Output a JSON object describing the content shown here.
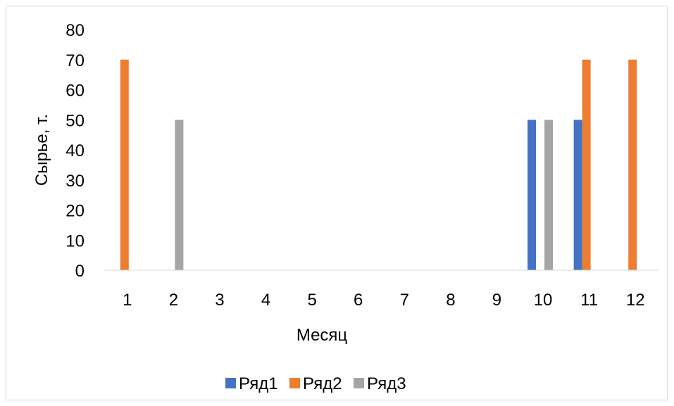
{
  "chart_data": {
    "type": "bar",
    "categories": [
      "1",
      "2",
      "3",
      "4",
      "5",
      "6",
      "7",
      "8",
      "9",
      "10",
      "11",
      "12"
    ],
    "series": [
      {
        "name": "Ряд1",
        "color": "#4472C4",
        "values": [
          0,
          0,
          0,
          0,
          0,
          0,
          0,
          0,
          0,
          50,
          50,
          0
        ]
      },
      {
        "name": "Ряд2",
        "color": "#ED7D31",
        "values": [
          70,
          0,
          0,
          0,
          0,
          0,
          0,
          0,
          0,
          0,
          70,
          70
        ]
      },
      {
        "name": "Ряд3",
        "color": "#A5A5A5",
        "values": [
          0,
          50,
          0,
          0,
          0,
          0,
          0,
          0,
          0,
          50,
          0,
          0
        ]
      }
    ],
    "title": "",
    "xlabel": "Месяц",
    "ylabel": "Сырье, т.",
    "ylim": [
      0,
      80
    ],
    "yticks": [
      "0",
      "10",
      "20",
      "30",
      "40",
      "50",
      "60",
      "70",
      "80"
    ],
    "grid": false,
    "legend_position": "bottom"
  }
}
